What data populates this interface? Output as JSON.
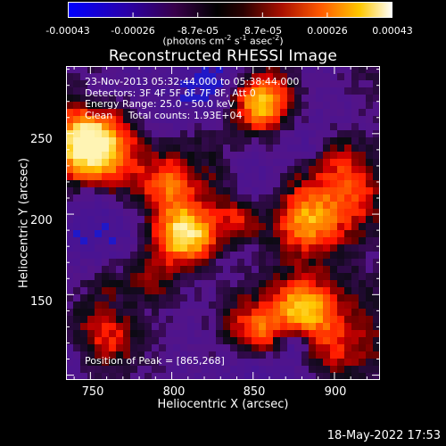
{
  "colorbar": {
    "tick_labels": [
      "-0.00043",
      "-0.00026",
      "-8.7e-05",
      "8.7e-05",
      "0.00026",
      "0.00043"
    ],
    "range": [
      -0.00043,
      0.00043
    ],
    "units_prefix": "(photons cm",
    "units_sup1": "-2",
    "units_mid1": " s",
    "units_sup2": "-1",
    "units_mid2": " asec",
    "units_sup3": "-2",
    "units_suffix": ")"
  },
  "title": "Reconstructed RHESSI Image",
  "overlay": {
    "line1": "23-Nov-2013 05:32:44.000 to 05:38:44.000",
    "line2": "Detectors: 3F 4F 5F 6F 7F 8F, Att 0",
    "line3": "Energy Range: 25.0 - 50.0 keV",
    "line4": "Clean     Total counts: 1.93E+04",
    "peak": "Position of Peak = [865,268]"
  },
  "axes": {
    "xlabel": "Heliocentric X (arcsec)",
    "ylabel": "Heliocentric Y (arcsec)",
    "x_ticks": [
      "750",
      "800",
      "850",
      "900"
    ],
    "y_ticks": [
      "250",
      "200",
      "150"
    ],
    "xlim": [
      735,
      928
    ],
    "ylim": [
      97,
      292
    ]
  },
  "footer": {
    "timestamp": "18-May-2022 17:53"
  },
  "colors": {
    "low": "#0000ff",
    "mid": "#000000",
    "high": "#ffffff"
  }
}
